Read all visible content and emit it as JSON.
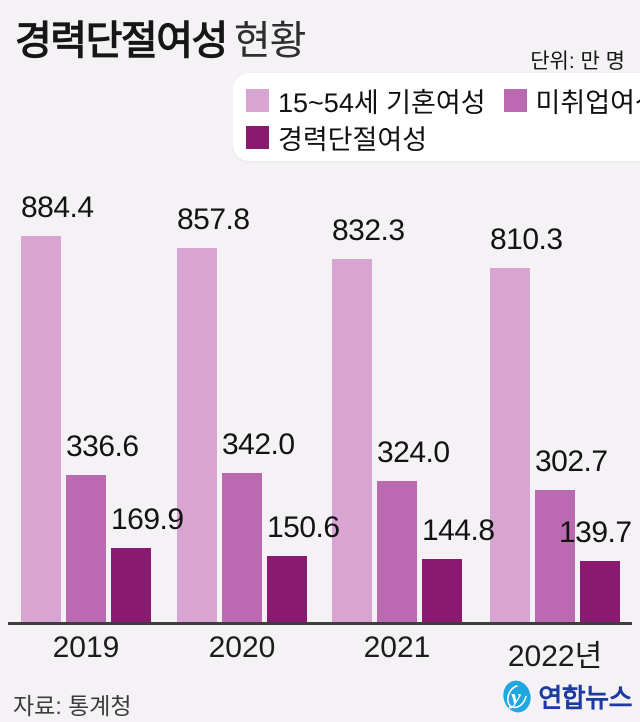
{
  "header": {
    "title_emphasis": "경력단절여성",
    "title_rest": "현황",
    "unit_label": "단위: 만 명"
  },
  "chart_data": {
    "type": "bar",
    "title": "경력단절여성 현황",
    "unit": "만 명",
    "categories": [
      "2019",
      "2020",
      "2021",
      "2022년"
    ],
    "series": [
      {
        "name": "15~54세 기혼여성",
        "color": "#d8a5d3",
        "values": [
          884.4,
          857.8,
          832.3,
          810.3
        ]
      },
      {
        "name": "미취업여성",
        "color": "#bb69b1",
        "values": [
          336.6,
          342.0,
          324.0,
          302.7
        ]
      },
      {
        "name": "경력단절여성",
        "color": "#8a1a70",
        "values": [
          169.9,
          150.6,
          144.8,
          139.7
        ]
      }
    ],
    "ylim": [
      0,
      900
    ],
    "grid": false,
    "value_labels": true,
    "legend_position": "top-right"
  },
  "footer": {
    "source": "자료: 통계청",
    "logo_text": "연합뉴스"
  },
  "colors": {
    "background": "#f4f2f4",
    "axis": "#3e3e3e",
    "legend_box": "#ffffff",
    "text": "#161616",
    "logo_blue": "#1ea7e0",
    "logo_navy": "#1c3aa0"
  }
}
